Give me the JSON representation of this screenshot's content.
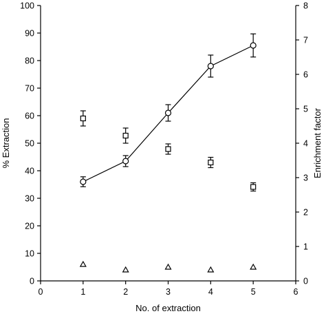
{
  "chart_data": {
    "type": "scatter",
    "title": "",
    "xlabel": "No. of extraction",
    "ylabel_left": "% Extraction",
    "ylabel_right": "Enrichment factor",
    "xlim": [
      0,
      6
    ],
    "ylim_left": [
      0,
      100
    ],
    "ylim_right": [
      0,
      8
    ],
    "x_ticks": [
      0,
      1,
      2,
      3,
      4,
      5,
      6
    ],
    "y_left_ticks": [
      0,
      10,
      20,
      30,
      40,
      50,
      60,
      70,
      80,
      90,
      100
    ],
    "y_right_ticks": [
      0,
      1,
      2,
      3,
      4,
      5,
      6,
      7,
      8
    ],
    "grid": false,
    "legend": "none",
    "series": [
      {
        "marker": "circle",
        "line": true,
        "axis": "left",
        "x": [
          1,
          2,
          3,
          4,
          5
        ],
        "y": [
          36,
          43.5,
          61,
          78,
          85.5
        ],
        "err": [
          1.8,
          2.0,
          3.0,
          4.0,
          4.2
        ]
      },
      {
        "marker": "square",
        "line": false,
        "axis": "right",
        "x": [
          1,
          2,
          3,
          4,
          5
        ],
        "y": [
          4.72,
          4.22,
          3.83,
          3.44,
          2.73
        ],
        "err": [
          0.22,
          0.22,
          0.15,
          0.15,
          0.12
        ]
      },
      {
        "marker": "triangle",
        "line": false,
        "axis": "left",
        "x": [
          1,
          2,
          3,
          4,
          5
        ],
        "y": [
          6,
          4,
          5,
          4,
          5
        ],
        "err": [
          0,
          0,
          0,
          0,
          0
        ]
      }
    ]
  }
}
